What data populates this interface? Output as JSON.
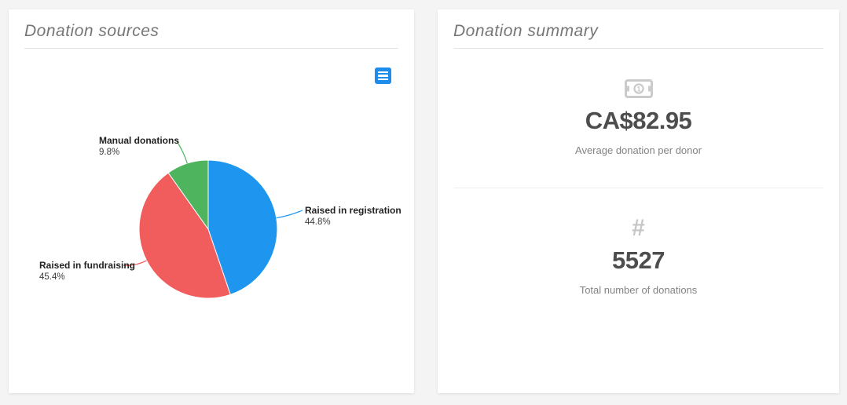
{
  "donation_sources": {
    "title": "Donation sources",
    "menu_icon": "hamburger-menu-icon"
  },
  "donation_summary": {
    "title": "Donation summary",
    "stats": [
      {
        "icon": "money-bill-icon",
        "value": "CA$82.95",
        "caption": "Average donation per donor"
      },
      {
        "icon": "hash-icon",
        "hash_glyph": "#",
        "value": "5527",
        "caption": "Total number of donations"
      }
    ]
  },
  "chart_data": {
    "type": "pie",
    "title": "Donation sources",
    "start_angle_deg": 0,
    "direction": "clockwise",
    "legend": "none",
    "data_labels": "outside with connector lines",
    "slices": [
      {
        "label": "Raised in registration",
        "pct": 44.8,
        "pct_label": "44.8%",
        "color": "#1e96f0"
      },
      {
        "label": "Raised in fundraising",
        "pct": 45.4,
        "pct_label": "45.4%",
        "color": "#f15d5d"
      },
      {
        "label": "Manual donations",
        "pct": 9.8,
        "pct_label": "9.8%",
        "color": "#4eb45e"
      }
    ]
  }
}
